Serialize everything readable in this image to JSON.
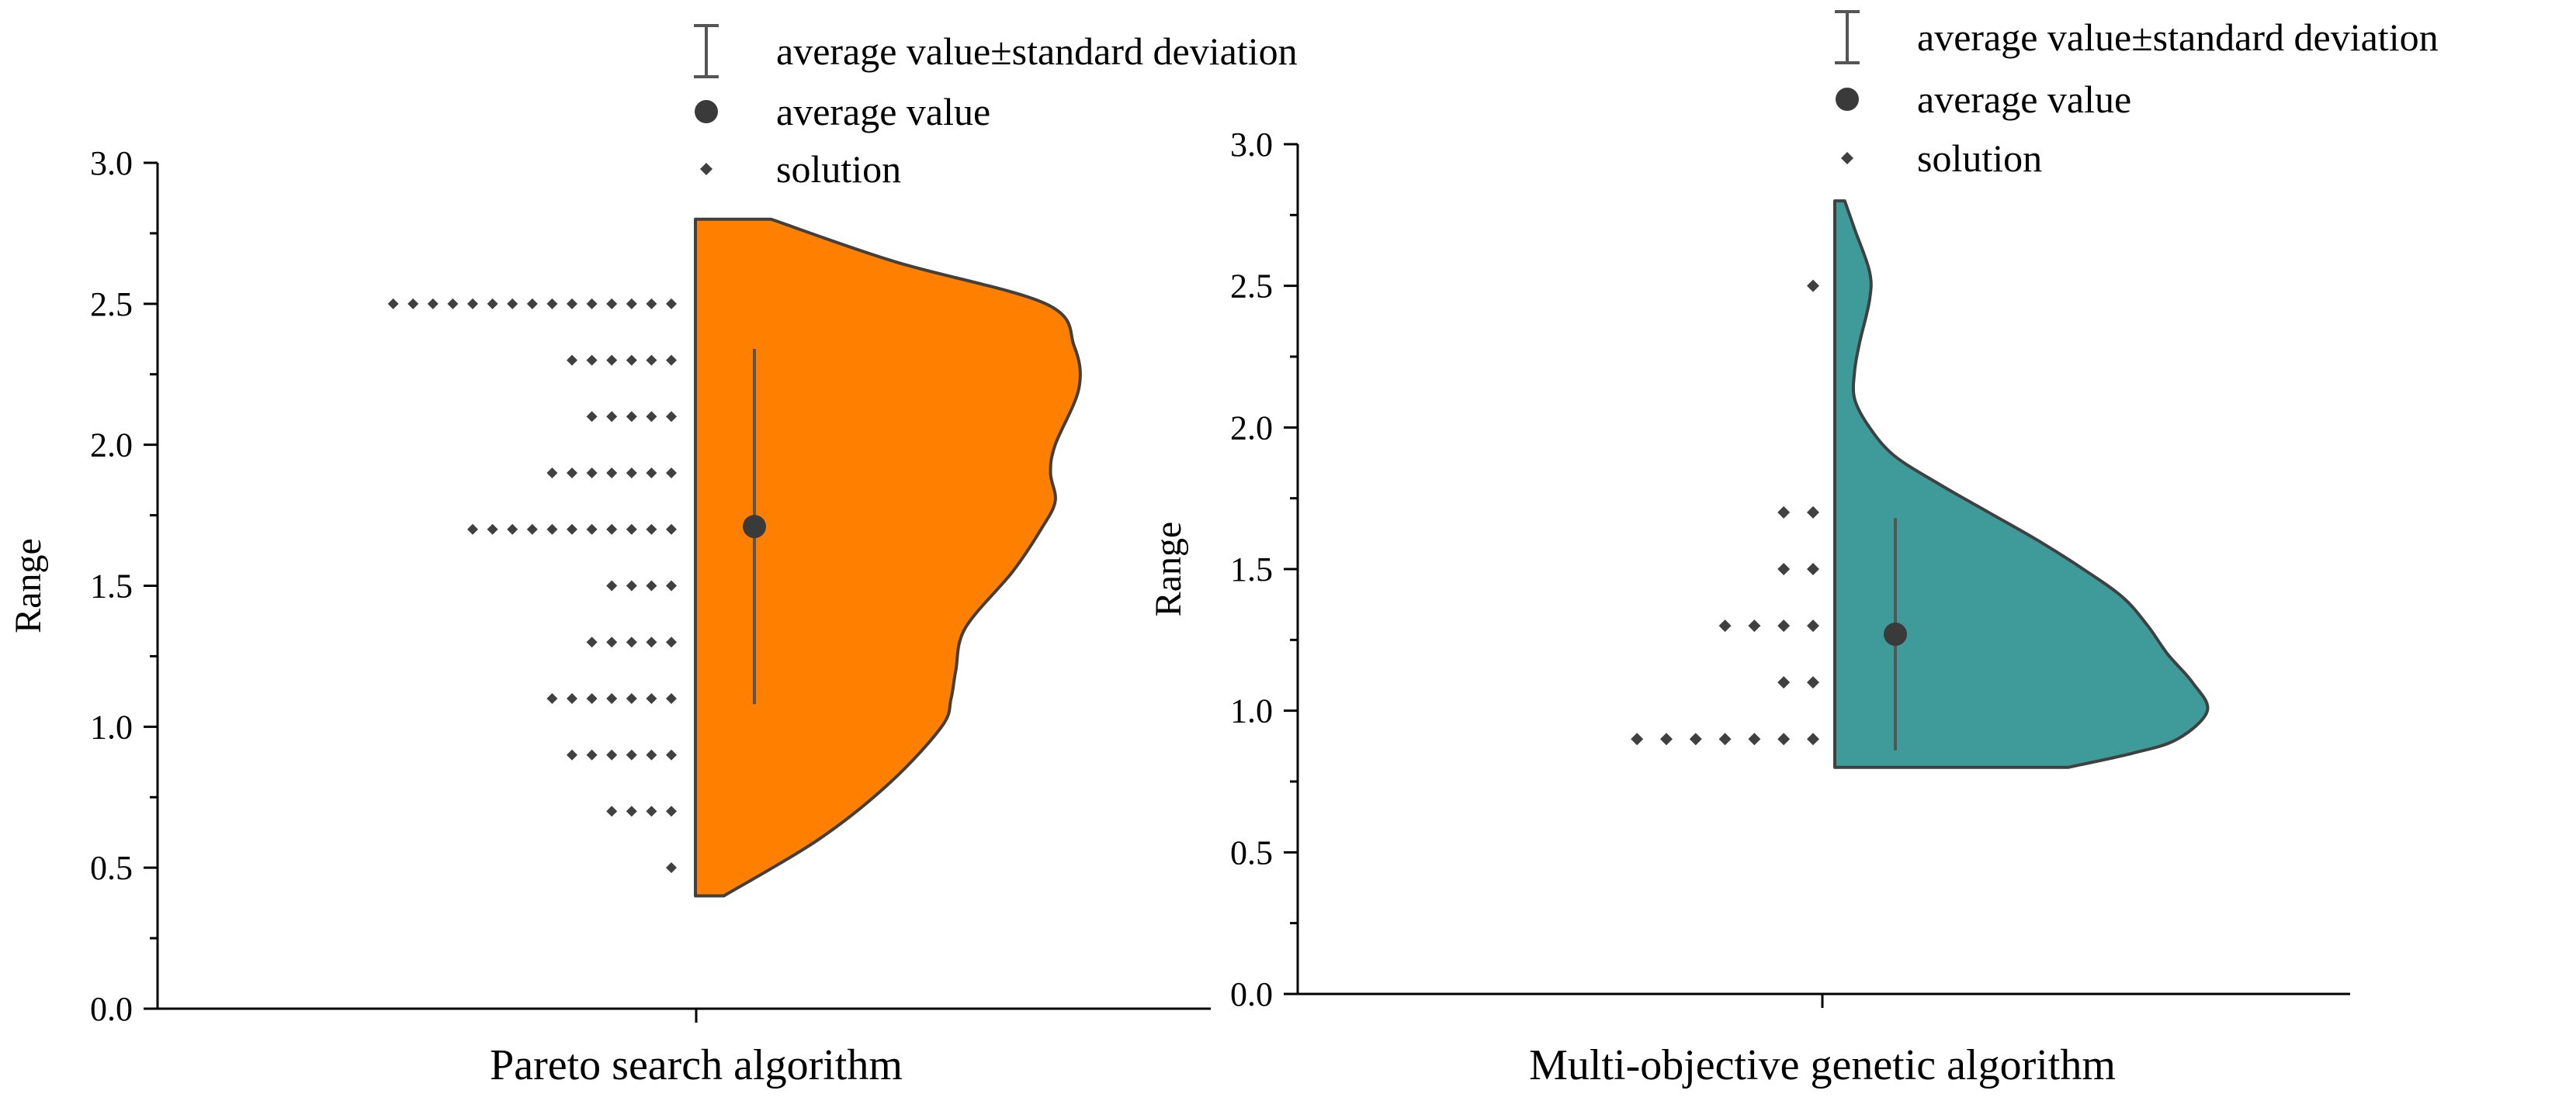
{
  "legend": [
    {
      "symbol": "errorbar",
      "label": "average value±standard deviation"
    },
    {
      "symbol": "circle",
      "label": "average value"
    },
    {
      "symbol": "diamond",
      "label": "solution"
    }
  ],
  "colors": {
    "panel_1_fill": "#ff8000",
    "panel_2_fill": "#3f9a9a",
    "outline": "#404040",
    "marker": "#404040"
  },
  "chart_data": [
    {
      "type": "violin",
      "category": "Pareto search algorithm",
      "ylabel": "Range",
      "ylim": [
        0.0,
        3.0
      ],
      "yticks": [
        "0.0",
        "0.5",
        "1.0",
        "1.5",
        "2.0",
        "2.5",
        "3.0"
      ],
      "fill_color": "#ff8000",
      "mean": 1.71,
      "std": 0.63,
      "violin_range": [
        0.4,
        2.8
      ],
      "density_profile": [
        [
          0.4,
          0.06
        ],
        [
          0.6,
          0.26
        ],
        [
          0.8,
          0.41
        ],
        [
          1.0,
          0.52
        ],
        [
          1.1,
          0.54
        ],
        [
          1.2,
          0.55
        ],
        [
          1.35,
          0.57
        ],
        [
          1.55,
          0.67
        ],
        [
          1.7,
          0.73
        ],
        [
          1.8,
          0.76
        ],
        [
          1.9,
          0.75
        ],
        [
          2.0,
          0.76
        ],
        [
          2.2,
          0.81
        ],
        [
          2.35,
          0.8
        ],
        [
          2.5,
          0.74
        ],
        [
          2.65,
          0.42
        ],
        [
          2.8,
          0.16
        ]
      ],
      "solutions": [
        {
          "y": 0.5,
          "count": 1
        },
        {
          "y": 0.7,
          "count": 4
        },
        {
          "y": 0.9,
          "count": 6
        },
        {
          "y": 1.1,
          "count": 7
        },
        {
          "y": 1.3,
          "count": 5
        },
        {
          "y": 1.5,
          "count": 4
        },
        {
          "y": 1.7,
          "count": 11
        },
        {
          "y": 1.9,
          "count": 7
        },
        {
          "y": 2.1,
          "count": 5
        },
        {
          "y": 2.3,
          "count": 6
        },
        {
          "y": 2.5,
          "count": 15
        }
      ]
    },
    {
      "type": "violin",
      "category": "Multi-objective genetic algorithm",
      "ylabel": "Range",
      "ylim": [
        0.0,
        3.0
      ],
      "yticks": [
        "0.0",
        "0.5",
        "1.0",
        "1.5",
        "2.0",
        "2.5",
        "3.0"
      ],
      "fill_color": "#3f9a9a",
      "mean": 1.27,
      "std": 0.41,
      "violin_range": [
        0.8,
        2.8
      ],
      "density_profile": [
        [
          0.8,
          0.47
        ],
        [
          0.85,
          0.6
        ],
        [
          0.9,
          0.69
        ],
        [
          1.0,
          0.75
        ],
        [
          1.1,
          0.72
        ],
        [
          1.2,
          0.67
        ],
        [
          1.3,
          0.63
        ],
        [
          1.4,
          0.58
        ],
        [
          1.5,
          0.5
        ],
        [
          1.6,
          0.41
        ],
        [
          1.7,
          0.31
        ],
        [
          1.8,
          0.21
        ],
        [
          1.9,
          0.12
        ],
        [
          2.0,
          0.07
        ],
        [
          2.1,
          0.04
        ],
        [
          2.2,
          0.04
        ],
        [
          2.3,
          0.05
        ],
        [
          2.45,
          0.07
        ],
        [
          2.55,
          0.07
        ],
        [
          2.7,
          0.04
        ],
        [
          2.8,
          0.02
        ]
      ],
      "solutions": [
        {
          "y": 0.9,
          "count": 7
        },
        {
          "y": 1.1,
          "count": 2
        },
        {
          "y": 1.3,
          "count": 4
        },
        {
          "y": 1.5,
          "count": 2
        },
        {
          "y": 1.7,
          "count": 2
        },
        {
          "y": 2.5,
          "count": 1
        }
      ]
    }
  ]
}
